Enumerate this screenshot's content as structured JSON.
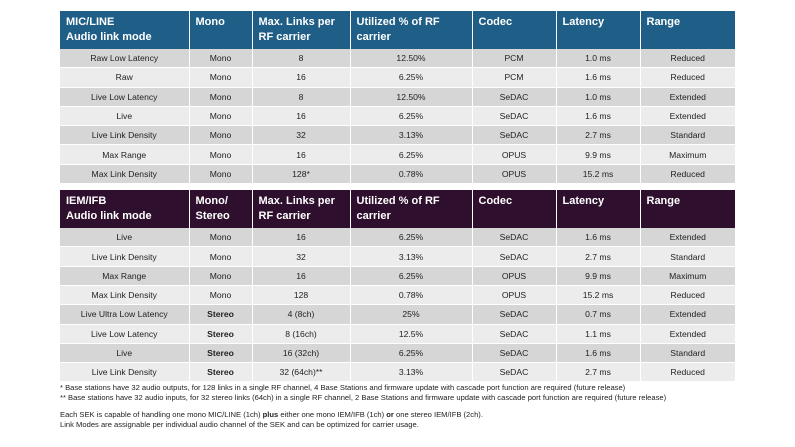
{
  "table1": {
    "headers": [
      "MIC/LINE\nAudio link mode",
      "Mono",
      "Max. Links per\nRF carrier",
      "Utilized % of RF\ncarrier",
      "Codec",
      "Latency",
      "Range"
    ],
    "header_lines": [
      [
        "MIC/LINE",
        "Audio link mode"
      ],
      [
        "Mono"
      ],
      [
        "Max. Links per",
        "RF carrier"
      ],
      [
        "Utilized % of RF",
        "carrier"
      ],
      [
        "Codec"
      ],
      [
        "Latency"
      ],
      [
        "Range"
      ]
    ],
    "rows": [
      [
        "Raw Low Latency",
        "Mono",
        "8",
        "12.50%",
        "PCM",
        "1.0 ms",
        "Reduced"
      ],
      [
        "Raw",
        "Mono",
        "16",
        "6.25%",
        "PCM",
        "1.6 ms",
        "Reduced"
      ],
      [
        "Live Low Latency",
        "Mono",
        "8",
        "12.50%",
        "SeDAC",
        "1.0 ms",
        "Extended"
      ],
      [
        "Live",
        "Mono",
        "16",
        "6.25%",
        "SeDAC",
        "1.6 ms",
        "Extended"
      ],
      [
        "Live Link Density",
        "Mono",
        "32",
        "3.13%",
        "SeDAC",
        "2.7 ms",
        "Standard"
      ],
      [
        "Max Range",
        "Mono",
        "16",
        "6.25%",
        "OPUS",
        "9.9 ms",
        "Maximum"
      ],
      [
        "Max Link Density",
        "Mono",
        "128*",
        "0.78%",
        "OPUS",
        "15.2 ms",
        "Reduced"
      ]
    ]
  },
  "table2": {
    "header_lines": [
      [
        "IEM/IFB",
        "Audio link mode"
      ],
      [
        "Mono/",
        "Stereo"
      ],
      [
        "Max. Links per",
        "RF carrier"
      ],
      [
        "Utilized % of RF",
        "carrier"
      ],
      [
        "Codec"
      ],
      [
        "Latency"
      ],
      [
        "Range"
      ]
    ],
    "rows": [
      [
        "Live",
        "Mono",
        "16",
        "6.25%",
        "SeDAC",
        "1.6 ms",
        "Extended"
      ],
      [
        "Live Link Density",
        "Mono",
        "32",
        "3.13%",
        "SeDAC",
        "2.7 ms",
        "Standard"
      ],
      [
        "Max Range",
        "Mono",
        "16",
        "6.25%",
        "OPUS",
        "9.9 ms",
        "Maximum"
      ],
      [
        "Max Link Density",
        "Mono",
        "128",
        "0.78%",
        "OPUS",
        "15.2 ms",
        "Reduced"
      ],
      [
        "Live Ultra Low Latency",
        "Stereo",
        "4 (8ch)",
        "25%",
        "SeDAC",
        "0.7 ms",
        "Extended"
      ],
      [
        "Live Low Latency",
        "Stereo",
        "8 (16ch)",
        "12.5%",
        "SeDAC",
        "1.1 ms",
        "Extended"
      ],
      [
        "Live",
        "Stereo",
        "16 (32ch)",
        "6.25%",
        "SeDAC",
        "1.6 ms",
        "Standard"
      ],
      [
        "Live Link Density",
        "Stereo",
        "32 (64ch)**",
        "3.13%",
        "SeDAC",
        "2.7 ms",
        "Reduced"
      ]
    ]
  },
  "notes": {
    "footnote1": "* Base stations have 32 audio outputs, for 128 links in a single RF channel, 4 Base Stations and firmware update with cascade port function are required (future release)",
    "footnote2": "** Base stations have 32 audio inputs, for 32 stereo links (64ch) in a single RF channel, 2 Base Stations and firmware update with cascade port function are required (future release)",
    "sek_part1": "Each SEK is capable of handling one mono MIC/LINE (1ch) ",
    "sek_plus": "plus",
    "sek_part2": " either one mono IEM/IFB (1ch) ",
    "sek_or": "or",
    "sek_part3": " one stereo IEM/IFB (2ch).",
    "link_modes": "Link Modes are assignable per individual audio channel of the SEK and can be optimized for carrier usage."
  }
}
